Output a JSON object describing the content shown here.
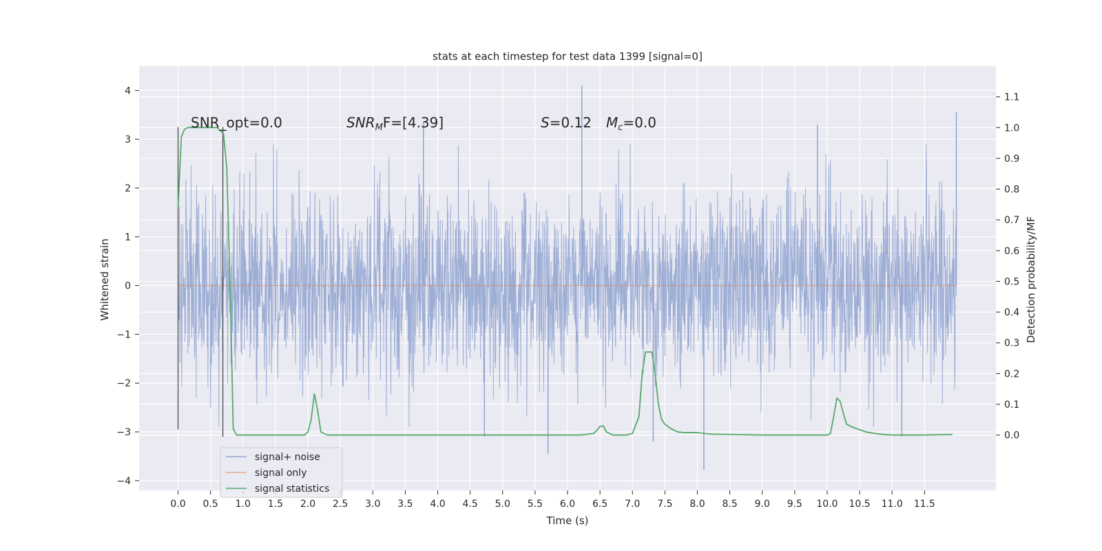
{
  "chart_data": {
    "type": "line",
    "title": "stats at each timestep for test data 1399 [signal=0]",
    "xlabel": "Time (s)",
    "ylabel_left": "Whitened strain",
    "ylabel_right": "Detection probability/MF",
    "xlim": [
      -0.6,
      12.6
    ],
    "ylim_left": [
      -4.2,
      4.5
    ],
    "ylim_right": [
      -0.18,
      1.2
    ],
    "x_ticks": [
      "0.0",
      "0.5",
      "1.0",
      "1.5",
      "2.0",
      "2.5",
      "3.0",
      "3.5",
      "4.0",
      "4.5",
      "5.0",
      "5.5",
      "6.0",
      "6.5",
      "7.0",
      "7.5",
      "8.0",
      "8.5",
      "9.0",
      "9.5",
      "10.0",
      "10.5",
      "11.0",
      "11.5"
    ],
    "y_ticks_left": [
      "4",
      "3",
      "2",
      "1",
      "0",
      "−1",
      "−2",
      "−3",
      "−4"
    ],
    "y_ticks_right": [
      "1.1",
      "1.0",
      "0.9",
      "0.8",
      "0.7",
      "0.6",
      "0.5",
      "0.4",
      "0.3",
      "0.2",
      "0.1",
      "0.0"
    ],
    "grid": true,
    "legend_location": "lower-left",
    "annotations": {
      "snr_opt": "SNR_opt=0.0",
      "snr_mf_main": "SNR",
      "snr_mf_sub": "M",
      "snr_mf_rest": "F=[4.39]",
      "s_main": "S",
      "s_rest": "=0.12",
      "mc_main": "M",
      "mc_sub": "c",
      "mc_rest": "=0.0"
    },
    "markers": [
      {
        "x": 0.0,
        "y_range": [
          -2.95,
          3.25
        ]
      },
      {
        "x": 0.69,
        "y_range": [
          -3.1,
          3.25
        ]
      }
    ],
    "series": [
      {
        "name": "signal+ noise",
        "axis": "left",
        "color": "#8fa3d0",
        "description_points": "dense noise in approximately [-3.5, 4.1]",
        "x_range": [
          0.0,
          11.99
        ],
        "envelope": {
          "lower": -1.4,
          "upper": 1.4
        },
        "spikes": [
          {
            "x": 6.22,
            "y": 4.1
          },
          {
            "x": 11.99,
            "y": 3.55
          },
          {
            "x": 9.85,
            "y": 3.3
          },
          {
            "x": 3.78,
            "y": 3.35
          },
          {
            "x": 8.1,
            "y": -3.78
          },
          {
            "x": 5.7,
            "y": -3.45
          },
          {
            "x": 7.32,
            "y": -3.2
          },
          {
            "x": 4.72,
            "y": -3.1
          },
          {
            "x": 11.15,
            "y": -3.1
          }
        ]
      },
      {
        "name": "signal only",
        "axis": "left",
        "color": "#dd8452",
        "x": [
          0.0,
          11.99
        ],
        "y": [
          0.0,
          0.0
        ]
      },
      {
        "name": "signal statistics",
        "axis": "right",
        "color": "#55a868",
        "x": [
          0.0,
          0.05,
          0.1,
          0.15,
          0.2,
          0.3,
          0.5,
          0.6,
          0.65,
          0.7,
          0.75,
          0.8,
          0.85,
          0.9,
          1.0,
          1.5,
          1.95,
          2.0,
          2.05,
          2.1,
          2.15,
          2.2,
          2.3,
          2.5,
          3.0,
          4.0,
          5.0,
          5.5,
          6.0,
          6.2,
          6.4,
          6.45,
          6.5,
          6.55,
          6.6,
          6.7,
          6.8,
          6.9,
          7.0,
          7.1,
          7.15,
          7.2,
          7.25,
          7.3,
          7.35,
          7.4,
          7.45,
          7.5,
          7.6,
          7.7,
          7.8,
          8.0,
          8.2,
          8.5,
          9.0,
          9.5,
          10.0,
          10.05,
          10.1,
          10.15,
          10.2,
          10.25,
          10.3,
          10.4,
          10.6,
          10.8,
          11.0,
          11.5,
          11.93
        ],
        "y": [
          0.74,
          0.97,
          0.995,
          1.0,
          1.0,
          1.0,
          1.0,
          1.0,
          0.99,
          0.98,
          0.87,
          0.5,
          0.02,
          0.0,
          0.0,
          0.0,
          0.0,
          0.01,
          0.05,
          0.135,
          0.08,
          0.01,
          0.0,
          0.0,
          0.0,
          0.0,
          0.0,
          0.0,
          0.0,
          0.0,
          0.005,
          0.015,
          0.028,
          0.03,
          0.01,
          0.0,
          0.0,
          0.0,
          0.005,
          0.06,
          0.2,
          0.27,
          0.27,
          0.27,
          0.2,
          0.1,
          0.05,
          0.035,
          0.02,
          0.01,
          0.008,
          0.008,
          0.003,
          0.002,
          0.0,
          0.0,
          0.0,
          0.005,
          0.06,
          0.12,
          0.11,
          0.07,
          0.035,
          0.025,
          0.01,
          0.003,
          0.0,
          0.0,
          0.002
        ]
      }
    ]
  }
}
